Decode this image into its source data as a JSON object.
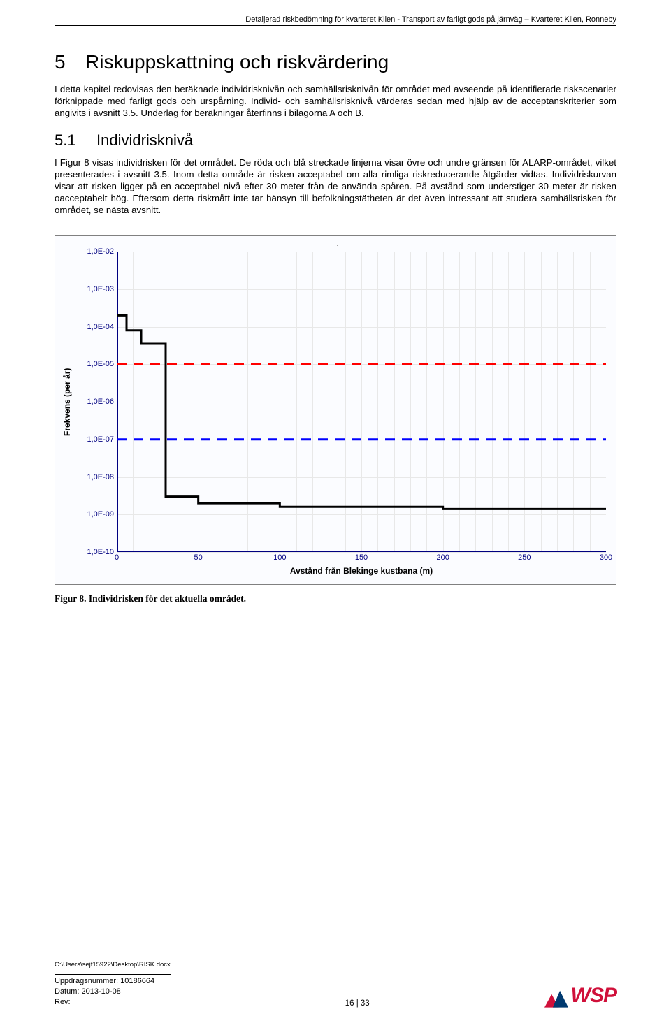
{
  "running_header": "Detaljerad riskbedömning för kvarteret Kilen - Transport av farligt gods på järnväg – Kvarteret Kilen, Ronneby",
  "section": {
    "number": "5",
    "title": "Riskuppskattning och riskvärdering",
    "para1": "I detta kapitel redovisas den beräknade individrisknivån och samhällsrisknivån för området med avseende på identifierade riskscenarier förknippade med farligt gods och urspårning. Individ- och samhällsrisknivå värderas sedan med hjälp av de acceptanskriterier som angivits i avsnitt 3.5. Underlag för beräkningar återfinns i bilagorna A och B."
  },
  "subsection": {
    "number": "5.1",
    "title": "Individrisknivå",
    "para1": "I Figur 8 visas individrisken för det området. De röda och blå streckade linjerna visar övre och undre gränsen för ALARP-området, vilket presenterades i avsnitt 3.5. Inom detta område är risken acceptabel om alla rimliga riskreducerande åtgärder vidtas. Individriskurvan visar att risken ligger på en acceptabel nivå efter 30 meter från de använda spåren. På avstånd som understiger 30 meter är risken oacceptabelt hög. Eftersom detta riskmått inte tar hänsyn till befolkningstätheten är det även intressant att studera samhällsrisken för området, se nästa avsnitt."
  },
  "chart": {
    "type": "line-step-log",
    "ylabel": "Frekvens (per år)",
    "xlabel": "Avstånd från Blekinge kustbana (m)",
    "xlim": [
      0,
      300
    ],
    "xticks": [
      0,
      50,
      100,
      150,
      200,
      250,
      300
    ],
    "x_minor_step": 10,
    "ylog_exponents": [
      -2,
      -3,
      -4,
      -5,
      -6,
      -7,
      -8,
      -9,
      -10
    ],
    "ytick_labels": [
      "1,0E-02",
      "1,0E-03",
      "1,0E-04",
      "1,0E-05",
      "1,0E-06",
      "1,0E-07",
      "1,0E-08",
      "1,0E-09",
      "1,0E-10"
    ],
    "grid_color": "#e8e8e8",
    "axis_color": "#000080",
    "tick_label_color": "#000080",
    "background_color": "#fbfcff",
    "border_color": "#808080",
    "alarp_upper": {
      "value": 1e-05,
      "color": "#ff0000",
      "dash": "14,10",
      "width": 3
    },
    "alarp_lower": {
      "value": 1e-07,
      "color": "#0000ff",
      "dash": "14,10",
      "width": 3
    },
    "curve": {
      "color": "#000000",
      "width": 3,
      "points": [
        {
          "x": 0,
          "y": 0.0002
        },
        {
          "x": 6,
          "y": 0.0002
        },
        {
          "x": 6,
          "y": 8e-05
        },
        {
          "x": 15,
          "y": 8e-05
        },
        {
          "x": 15,
          "y": 3.5e-05
        },
        {
          "x": 30,
          "y": 3.5e-05
        },
        {
          "x": 30,
          "y": 3e-09
        },
        {
          "x": 50,
          "y": 3e-09
        },
        {
          "x": 50,
          "y": 2e-09
        },
        {
          "x": 100,
          "y": 2e-09
        },
        {
          "x": 100,
          "y": 1.6e-09
        },
        {
          "x": 200,
          "y": 1.6e-09
        },
        {
          "x": 200,
          "y": 1.4e-09
        },
        {
          "x": 300,
          "y": 1.4e-09
        }
      ]
    }
  },
  "caption": "Figur 8. Individrisken för det aktuella området.",
  "footer": {
    "path": "C:\\Users\\sejf15922\\Desktop\\RISK.docx",
    "uppdrag_label": "Uppdragsnummer:",
    "uppdrag_value": "10186664",
    "datum_label": "Datum:",
    "datum_value": "2013-10-08",
    "rev_label": "Rev:",
    "page": "16 | 33",
    "logo_text": "WSP"
  }
}
